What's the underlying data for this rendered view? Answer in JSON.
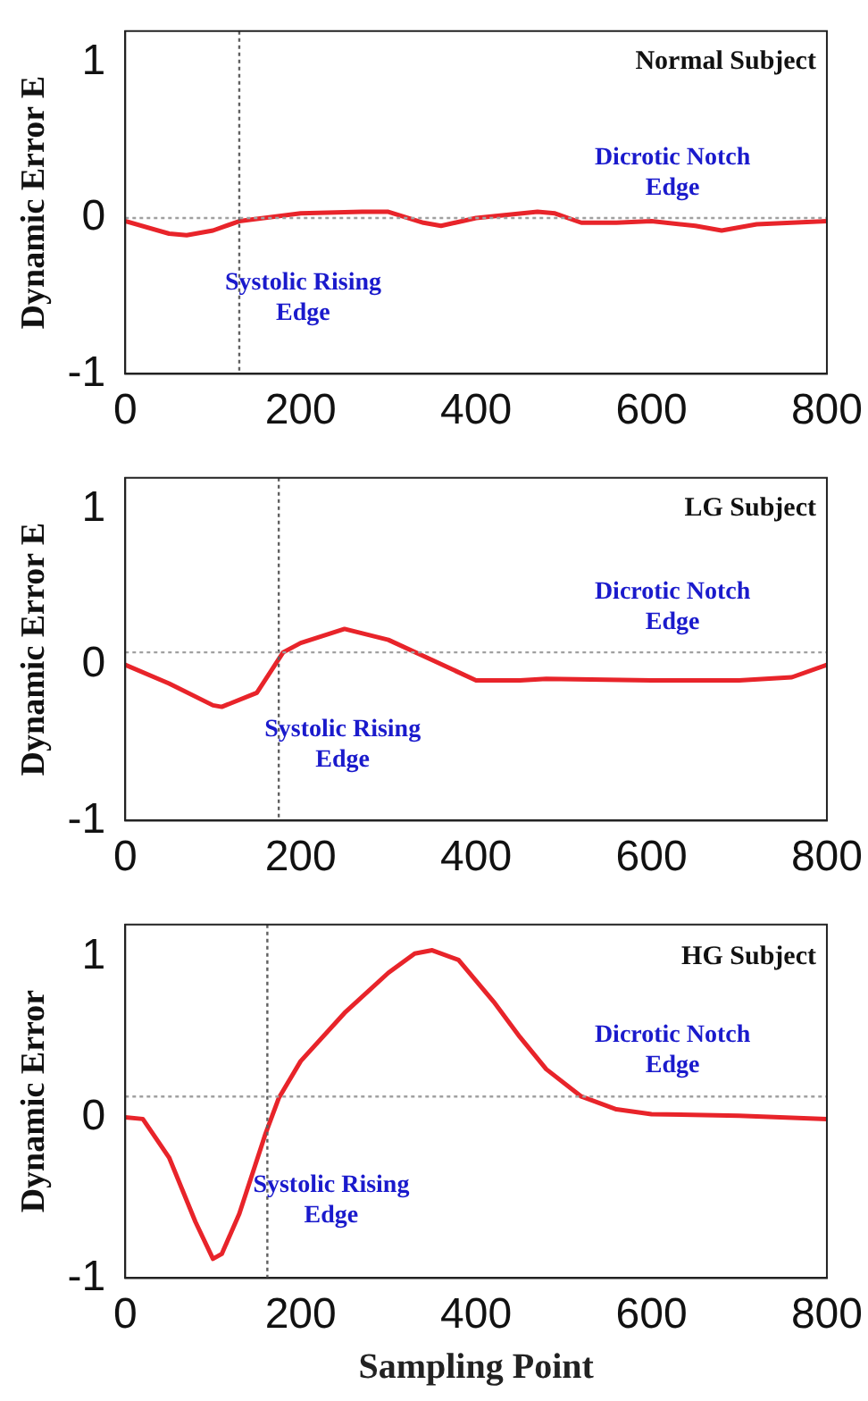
{
  "chart_data": [
    {
      "type": "line",
      "title": "Normal Subject",
      "ylabel": "Dynamic Error E",
      "x": [
        0,
        50,
        70,
        100,
        130,
        200,
        270,
        300,
        340,
        360,
        400,
        470,
        490,
        520,
        560,
        600,
        650,
        680,
        720,
        760,
        800
      ],
      "series": [
        {
          "color": "#e8242a",
          "values": [
            -0.02,
            -0.1,
            -0.11,
            -0.08,
            -0.02,
            0.03,
            0.04,
            0.04,
            -0.03,
            -0.05,
            0,
            0.04,
            0.03,
            -0.03,
            -0.03,
            -0.02,
            -0.05,
            -0.08,
            -0.04,
            -0.03,
            -0.02
          ]
        }
      ],
      "xlim": [
        0,
        800
      ],
      "xticks": [
        0,
        200,
        400,
        600,
        800
      ],
      "ylim": [
        -1,
        1.2
      ],
      "yticks": [
        -1,
        0,
        1
      ],
      "grid": false,
      "legend": false,
      "marker": "none",
      "line_style": "solid",
      "ref_lines": [
        {
          "axis": "x",
          "value": 130,
          "color": "#606060",
          "line_style": "dotted",
          "label": "Systolic Rising\nEdge"
        },
        {
          "axis": "y",
          "value": 0,
          "color": "#a0a0a0",
          "line_style": "dotted",
          "label": "Dicrotic Notch\nEdge"
        }
      ]
    },
    {
      "type": "line",
      "title": "LG Subject",
      "ylabel": "Dynamic Error E",
      "x": [
        0,
        50,
        100,
        110,
        150,
        180,
        200,
        250,
        300,
        350,
        400,
        450,
        480,
        600,
        700,
        760,
        800
      ],
      "series": [
        {
          "color": "#e8242a",
          "values": [
            0,
            -0.12,
            -0.26,
            -0.27,
            -0.18,
            0.08,
            0.14,
            0.23,
            0.16,
            0.03,
            -0.1,
            -0.1,
            -0.09,
            -0.1,
            -0.1,
            -0.08,
            0
          ]
        }
      ],
      "xlim": [
        0,
        800
      ],
      "xticks": [
        0,
        200,
        400,
        600,
        800
      ],
      "ylim": [
        -1,
        1.2
      ],
      "yticks": [
        -1,
        0,
        1
      ],
      "grid": false,
      "legend": false,
      "marker": "none",
      "line_style": "solid",
      "ref_lines": [
        {
          "axis": "x",
          "value": 175,
          "color": "#606060",
          "line_style": "dotted",
          "label": "Systolic Rising\nEdge"
        },
        {
          "axis": "y",
          "value": 0.08,
          "color": "#a0a0a0",
          "line_style": "dotted",
          "label": "Dicrotic Notch\nEdge"
        }
      ]
    },
    {
      "type": "line",
      "title": "HG Subject",
      "ylabel": "Dynamic Error",
      "xlabel": "Sampling Point",
      "x": [
        0,
        20,
        50,
        80,
        100,
        110,
        130,
        160,
        175,
        200,
        250,
        300,
        330,
        350,
        380,
        420,
        450,
        480,
        520,
        560,
        600,
        700,
        800
      ],
      "series": [
        {
          "color": "#e8242a",
          "values": [
            0,
            -0.01,
            -0.25,
            -0.65,
            -0.88,
            -0.85,
            -0.6,
            -0.1,
            0.12,
            0.35,
            0.65,
            0.9,
            1.02,
            1.04,
            0.98,
            0.72,
            0.5,
            0.3,
            0.13,
            0.05,
            0.02,
            0.01,
            -0.01
          ]
        }
      ],
      "xlim": [
        0,
        800
      ],
      "xticks": [
        0,
        200,
        400,
        600,
        800
      ],
      "ylim": [
        -1,
        1.2
      ],
      "yticks": [
        -1,
        0,
        1
      ],
      "grid": false,
      "legend": false,
      "marker": "none",
      "line_style": "solid",
      "ref_lines": [
        {
          "axis": "x",
          "value": 162,
          "color": "#606060",
          "line_style": "dotted",
          "label": "Systolic Rising\nEdge"
        },
        {
          "axis": "y",
          "value": 0.13,
          "color": "#a0a0a0",
          "line_style": "dotted",
          "label": "Dicrotic Notch\nEdge"
        }
      ]
    }
  ]
}
